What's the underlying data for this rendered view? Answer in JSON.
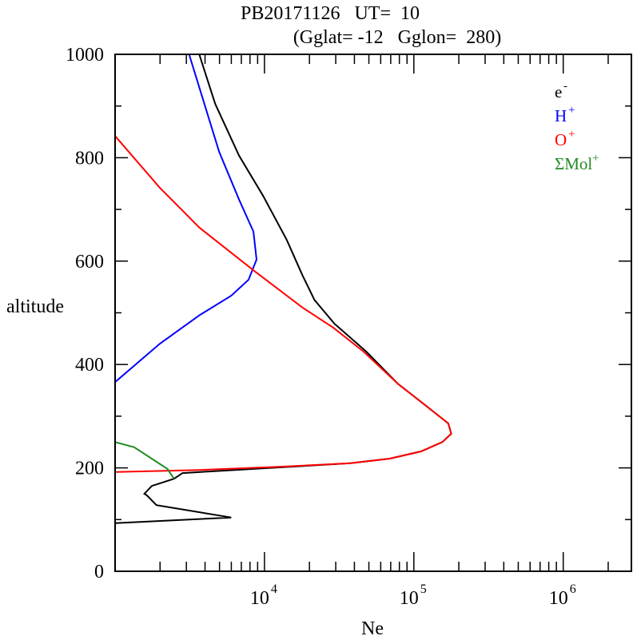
{
  "chart_data": {
    "type": "line",
    "title": "PB20171126   UT=  10",
    "subtitle": "(Gglat= -12   Gglon=  280)",
    "xlabel": "Ne",
    "ylabel": "altitude",
    "xscale": "log",
    "xlim": [
      1000,
      2860000
    ],
    "ylim": [
      0,
      1000
    ],
    "xticks": [
      {
        "value": 10000,
        "base": "10",
        "exp": "4"
      },
      {
        "value": 100000,
        "base": "10",
        "exp": "5"
      },
      {
        "value": 1000000,
        "base": "10",
        "exp": "6"
      }
    ],
    "yticks": [
      0,
      200,
      400,
      600,
      800,
      1000
    ],
    "legend_position": "top-right",
    "series": [
      {
        "name": "e",
        "sup": "-",
        "color": "#000000",
        "points": [
          [
            1000,
            93
          ],
          [
            5990,
            104
          ],
          [
            1890,
            128
          ],
          [
            1630,
            147
          ],
          [
            1570,
            150
          ],
          [
            1760,
            165
          ],
          [
            2480,
            179
          ],
          [
            2830,
            190
          ],
          [
            4250,
            193
          ],
          [
            12500,
            201
          ],
          [
            37500,
            209
          ],
          [
            69000,
            218
          ],
          [
            112000,
            232
          ],
          [
            155000,
            250
          ],
          [
            178000,
            266
          ],
          [
            170000,
            286
          ],
          [
            135000,
            309
          ],
          [
            78000,
            363
          ],
          [
            48000,
            425
          ],
          [
            29400,
            479
          ],
          [
            21600,
            525
          ],
          [
            18000,
            572
          ],
          [
            14100,
            641
          ],
          [
            9800,
            726
          ],
          [
            6760,
            804
          ],
          [
            4680,
            904
          ],
          [
            3660,
            1000
          ]
        ]
      },
      {
        "name": "H",
        "sup": "+",
        "color": "#0000ff",
        "points": [
          [
            1000,
            366
          ],
          [
            1990,
            440
          ],
          [
            3660,
            495
          ],
          [
            5990,
            533
          ],
          [
            7830,
            564
          ],
          [
            8850,
            603
          ],
          [
            8440,
            657
          ],
          [
            6760,
            719
          ],
          [
            4980,
            811
          ],
          [
            3130,
            1000
          ]
        ]
      },
      {
        "name": "O",
        "sup": "+",
        "color": "#ff0000",
        "points": [
          [
            1000,
            192
          ],
          [
            3660,
            196
          ],
          [
            12500,
            202
          ],
          [
            37500,
            209
          ],
          [
            69000,
            218
          ],
          [
            112000,
            232
          ],
          [
            155000,
            250
          ],
          [
            178000,
            266
          ],
          [
            170000,
            286
          ],
          [
            135000,
            309
          ],
          [
            78000,
            363
          ],
          [
            46000,
            425
          ],
          [
            29000,
            471
          ],
          [
            18000,
            510
          ],
          [
            8630,
            580
          ],
          [
            3660,
            665
          ],
          [
            1990,
            742
          ],
          [
            1000,
            842
          ]
        ]
      },
      {
        "name": "ΣMol",
        "sup": "+",
        "color": "#228b22",
        "points": [
          [
            1000,
            250
          ],
          [
            1340,
            240
          ],
          [
            2240,
            198
          ],
          [
            2480,
            179
          ]
        ]
      }
    ]
  }
}
